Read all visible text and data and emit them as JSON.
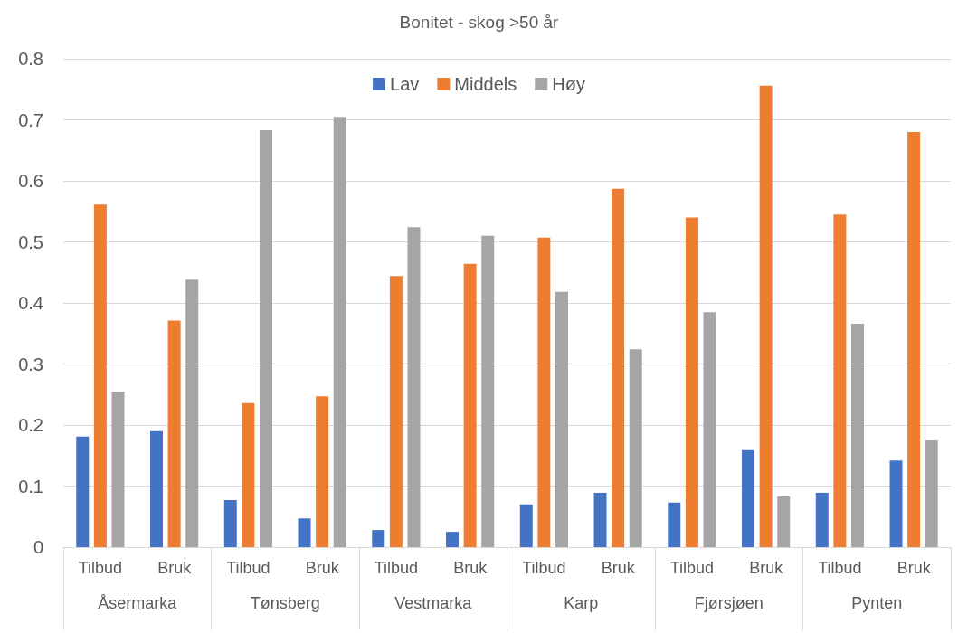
{
  "chart_data": {
    "type": "bar",
    "title": "Bonitet - skog >50 år",
    "categories": [
      "Tilbud",
      "Bruk",
      "Tilbud",
      "Bruk",
      "Tilbud",
      "Bruk",
      "Tilbud",
      "Bruk",
      "Tilbud",
      "Bruk",
      "Tilbud",
      "Bruk"
    ],
    "annotations": [
      "Åsermarka",
      "Tønsberg",
      "Vestmarka",
      "Karp",
      "Fjørsjøen",
      "Pynten"
    ],
    "series": [
      {
        "name": "Lav",
        "color": "#4472c4",
        "values": [
          0.181,
          0.19,
          0.077,
          0.047,
          0.028,
          0.025,
          0.07,
          0.089,
          0.073,
          0.159,
          0.089,
          0.142
        ]
      },
      {
        "name": "Middels",
        "color": "#ed7d31",
        "values": [
          0.561,
          0.371,
          0.236,
          0.247,
          0.444,
          0.464,
          0.507,
          0.587,
          0.54,
          0.756,
          0.545,
          0.68
        ]
      },
      {
        "name": "Høy",
        "color": "#a5a5a5",
        "values": [
          0.255,
          0.438,
          0.683,
          0.705,
          0.524,
          0.51,
          0.418,
          0.324,
          0.385,
          0.083,
          0.366,
          0.175
        ]
      }
    ],
    "ylim": [
      0,
      0.8
    ],
    "yticks": [
      0,
      0.1,
      0.2,
      0.3,
      0.4,
      0.5,
      0.6,
      0.7,
      0.8
    ],
    "grid": "y",
    "legend": "top"
  }
}
